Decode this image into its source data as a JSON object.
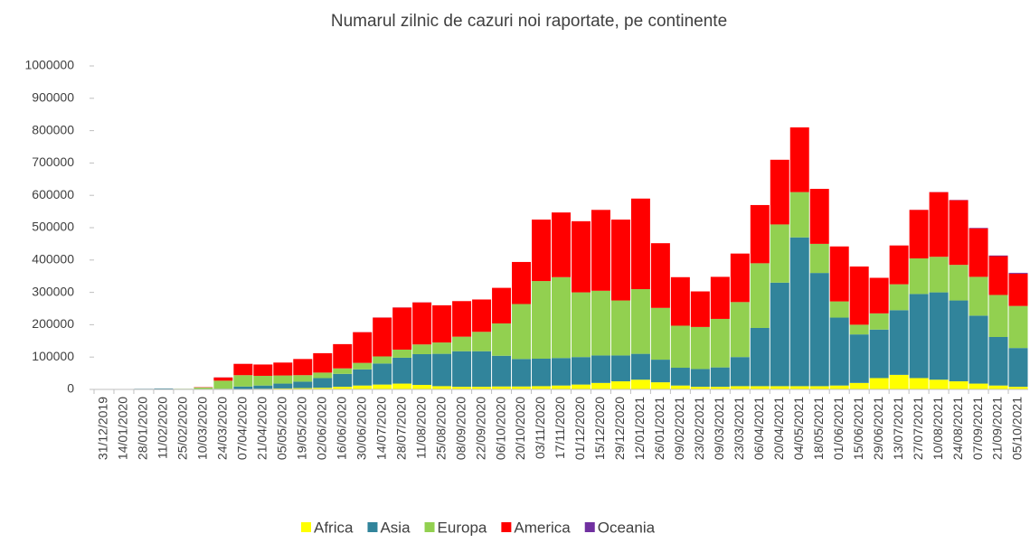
{
  "chart_data": {
    "type": "stacked_bar",
    "title": "Numarul zilnic de cazuri noi raportate, pe continente",
    "categories": [
      "31/12/2019",
      "14/01/2020",
      "28/01/2020",
      "11/02/2020",
      "25/02/2020",
      "10/03/2020",
      "24/03/2020",
      "07/04/2020",
      "21/04/2020",
      "05/05/2020",
      "19/05/2020",
      "02/06/2020",
      "16/06/2020",
      "30/06/2020",
      "14/07/2020",
      "28/07/2020",
      "11/08/2020",
      "25/08/2020",
      "08/09/2020",
      "22/09/2020",
      "06/10/2020",
      "20/10/2020",
      "03/11/2020",
      "17/11/2020",
      "01/12/2020",
      "15/12/2020",
      "29/12/2020",
      "12/01/2021",
      "26/01/2021",
      "09/02/2021",
      "23/02/2021",
      "09/03/2021",
      "23/03/2021",
      "06/04/2021",
      "20/04/2021",
      "04/05/2021",
      "18/05/2021",
      "01/06/2021",
      "15/06/2021",
      "29/06/2021",
      "13/07/2021",
      "27/07/2021",
      "10/08/2021",
      "24/08/2021",
      "07/09/2021",
      "21/09/2021",
      "05/10/2021"
    ],
    "series": [
      {
        "name": "Africa",
        "color": "#ffff00",
        "values": [
          0,
          0,
          0,
          0,
          0,
          0,
          0,
          1000,
          2000,
          3000,
          4000,
          5000,
          8000,
          12000,
          15000,
          18000,
          14000,
          10000,
          8000,
          8000,
          9000,
          9000,
          10000,
          12000,
          15000,
          20000,
          25000,
          30000,
          22000,
          12000,
          8000,
          8000,
          10000,
          10000,
          10000,
          10000,
          10000,
          12000,
          20000,
          35000,
          45000,
          35000,
          30000,
          25000,
          18000,
          12000,
          8000
        ]
      },
      {
        "name": "Asia",
        "color": "#31849b",
        "values": [
          0,
          0,
          2000,
          3000,
          1000,
          1000,
          2000,
          8000,
          10000,
          15000,
          20000,
          30000,
          40000,
          50000,
          65000,
          80000,
          95000,
          100000,
          110000,
          110000,
          95000,
          85000,
          85000,
          85000,
          85000,
          85000,
          80000,
          80000,
          70000,
          55000,
          55000,
          60000,
          90000,
          180000,
          320000,
          460000,
          350000,
          210000,
          150000,
          150000,
          200000,
          260000,
          270000,
          250000,
          210000,
          150000,
          120000
        ]
      },
      {
        "name": "Europa",
        "color": "#92d050",
        "values": [
          0,
          0,
          0,
          0,
          1000,
          5000,
          25000,
          35000,
          30000,
          25000,
          20000,
          17000,
          17000,
          20000,
          22000,
          25000,
          30000,
          35000,
          45000,
          60000,
          100000,
          170000,
          240000,
          250000,
          200000,
          200000,
          170000,
          200000,
          160000,
          130000,
          130000,
          150000,
          170000,
          200000,
          180000,
          140000,
          90000,
          50000,
          30000,
          50000,
          80000,
          110000,
          110000,
          110000,
          120000,
          130000,
          130000
        ]
      },
      {
        "name": "America",
        "color": "#ff0000",
        "values": [
          0,
          0,
          0,
          0,
          0,
          1000,
          10000,
          35000,
          35000,
          40000,
          50000,
          60000,
          75000,
          95000,
          120000,
          130000,
          130000,
          115000,
          110000,
          100000,
          110000,
          130000,
          190000,
          200000,
          220000,
          250000,
          250000,
          280000,
          200000,
          150000,
          110000,
          130000,
          150000,
          180000,
          200000,
          200000,
          170000,
          170000,
          180000,
          110000,
          120000,
          150000,
          200000,
          200000,
          150000,
          120000,
          100000
        ]
      },
      {
        "name": "Oceania",
        "color": "#7030a0",
        "values": [
          0,
          0,
          0,
          0,
          0,
          0,
          300,
          100,
          0,
          0,
          0,
          0,
          0,
          200,
          300,
          400,
          300,
          100,
          0,
          0,
          0,
          0,
          0,
          0,
          0,
          0,
          0,
          0,
          0,
          0,
          0,
          0,
          0,
          0,
          0,
          0,
          0,
          0,
          0,
          0,
          100,
          200,
          300,
          800,
          1500,
          2000,
          2500
        ]
      }
    ],
    "ylim": [
      0,
      1000000
    ],
    "yticks": [
      0,
      100000,
      200000,
      300000,
      400000,
      500000,
      600000,
      700000,
      800000,
      900000,
      1000000
    ],
    "legend": "bottom"
  }
}
